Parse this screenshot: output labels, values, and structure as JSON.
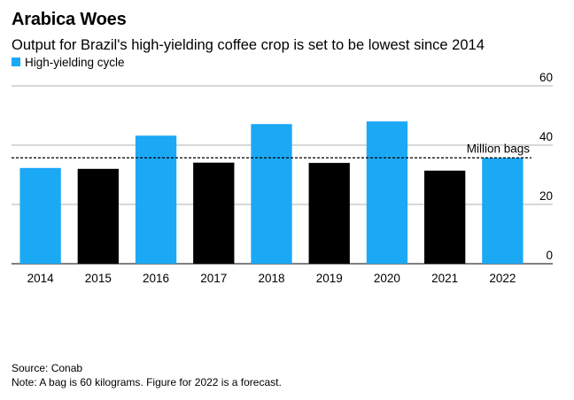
{
  "chart_data": {
    "type": "bar",
    "title": "Arabica Woes",
    "subtitle": "Output for Brazil's high-yielding coffee crop is set to be lowest since 2014",
    "legend": {
      "label": "High-yielding cycle",
      "position": "top-left"
    },
    "categories": [
      "2014",
      "2015",
      "2016",
      "2017",
      "2018",
      "2019",
      "2020",
      "2021",
      "2022"
    ],
    "values": [
      32.3,
      32.0,
      43.2,
      34.1,
      47.1,
      34.0,
      48.0,
      31.4,
      35.7
    ],
    "high_yielding_cycle": [
      true,
      false,
      true,
      false,
      true,
      false,
      true,
      false,
      true
    ],
    "ylim": [
      0,
      60
    ],
    "yticks": [
      0,
      20,
      40,
      60
    ],
    "ylabel": "",
    "xlabel": "",
    "y_axis_side": "right",
    "grid": "horizontal",
    "reference_line": {
      "value": 35.7,
      "label": "Million bags",
      "style": "dashed"
    },
    "colors": {
      "high_yielding": "#1BA8F5",
      "other": "#000000",
      "gridline": "#999999"
    },
    "source": "Source: Conab",
    "note": "Note: A bag is 60 kilograms. Figure for 2022 is a forecast."
  }
}
